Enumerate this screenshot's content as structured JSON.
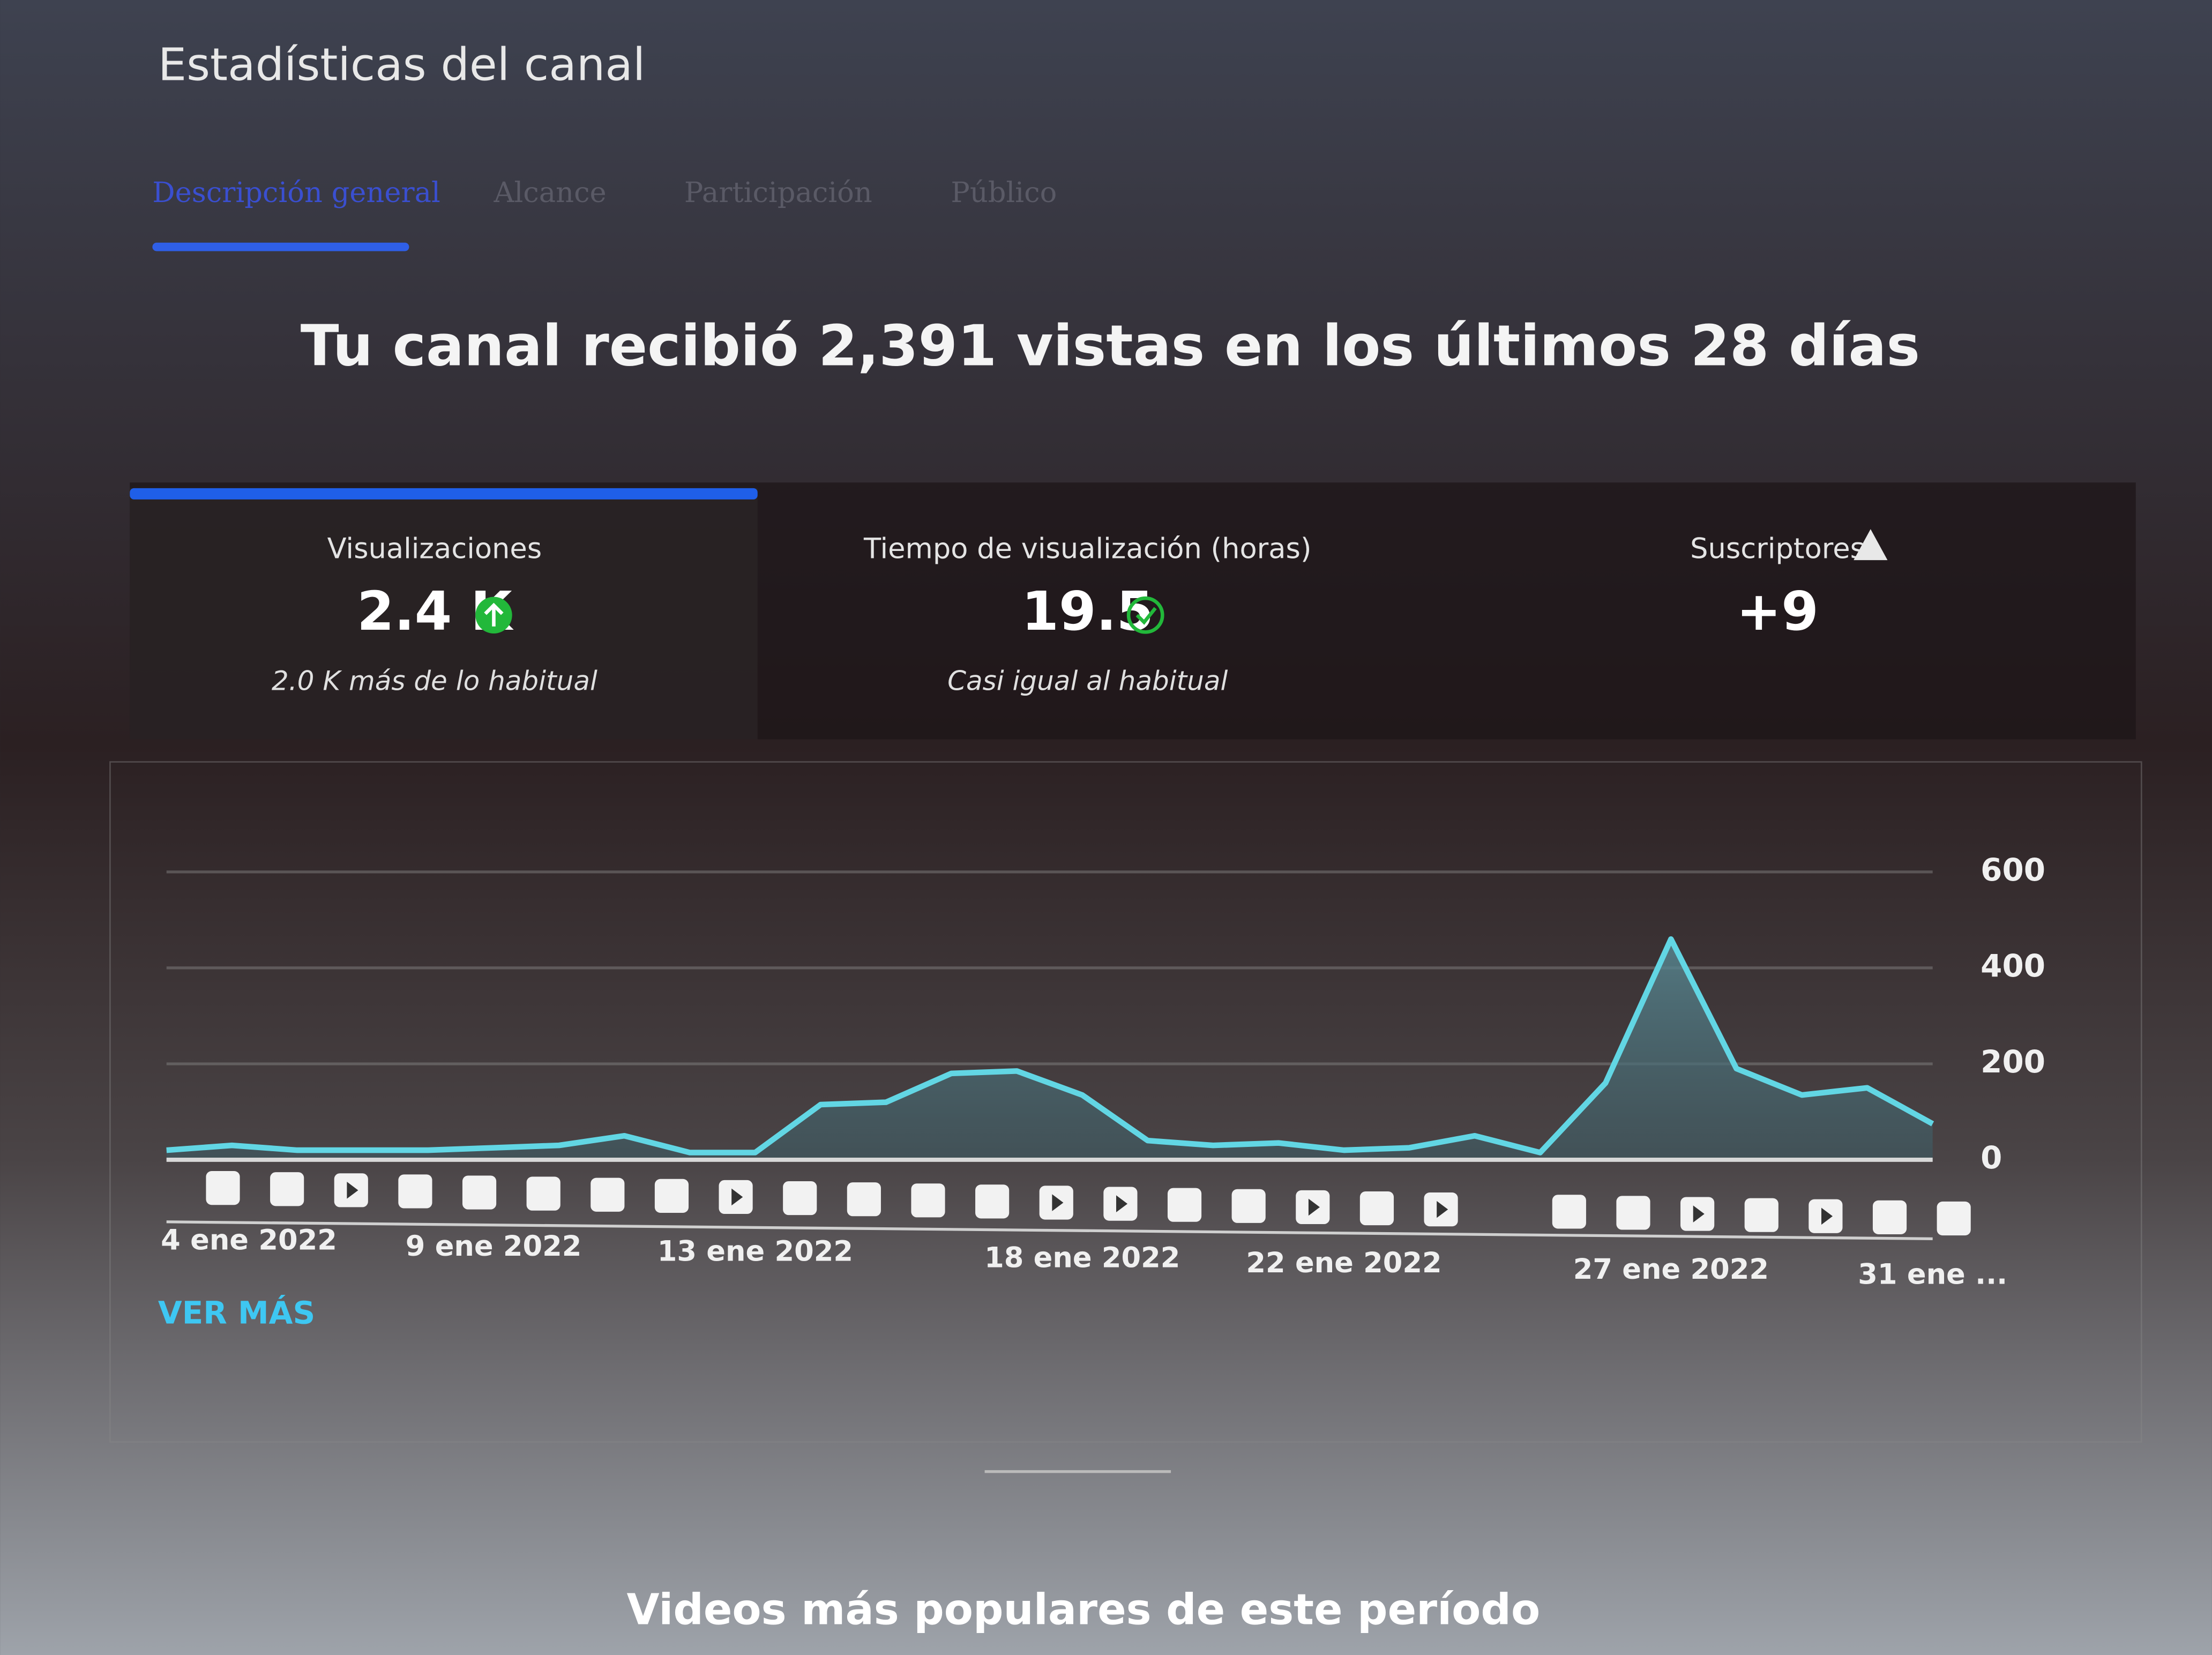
{
  "header": {
    "title": "Estadísticas del canal"
  },
  "tabs": [
    "Descripción general",
    "Alcance",
    "Participación",
    "Público"
  ],
  "headline": "Tu canal recibió 2,391 vistas en los últimos 28 días",
  "metrics": [
    {
      "label": "Visualizaciones",
      "value": "2.4 K",
      "note": "2.0 K más de lo habitual"
    },
    {
      "label": "Tiempo de visualización (horas)",
      "value": "19.5",
      "note": "Casi igual al habitual"
    },
    {
      "label": "Suscriptores",
      "value": "+9"
    }
  ],
  "chart_data": {
    "type": "line",
    "categories": [
      "4 ene 2022",
      null,
      null,
      null,
      null,
      "9 ene 2022",
      null,
      null,
      null,
      "13 ene 2022",
      null,
      null,
      null,
      null,
      "18 ene 2022",
      null,
      null,
      null,
      "22 ene 2022",
      null,
      null,
      null,
      null,
      "27 ene 2022",
      null,
      null,
      null,
      "31 ene ..."
    ],
    "values": [
      20,
      30,
      20,
      20,
      20,
      25,
      30,
      50,
      15,
      15,
      115,
      120,
      180,
      185,
      135,
      40,
      30,
      35,
      20,
      25,
      50,
      15,
      160,
      460,
      190,
      135,
      150,
      75
    ],
    "color": "#62d6e4",
    "ylim": [
      0,
      600
    ],
    "yticks": [
      0,
      200,
      400,
      600
    ],
    "grid": true
  },
  "more_link": "VER MÁS",
  "section_title": "Videos más populares de este período"
}
